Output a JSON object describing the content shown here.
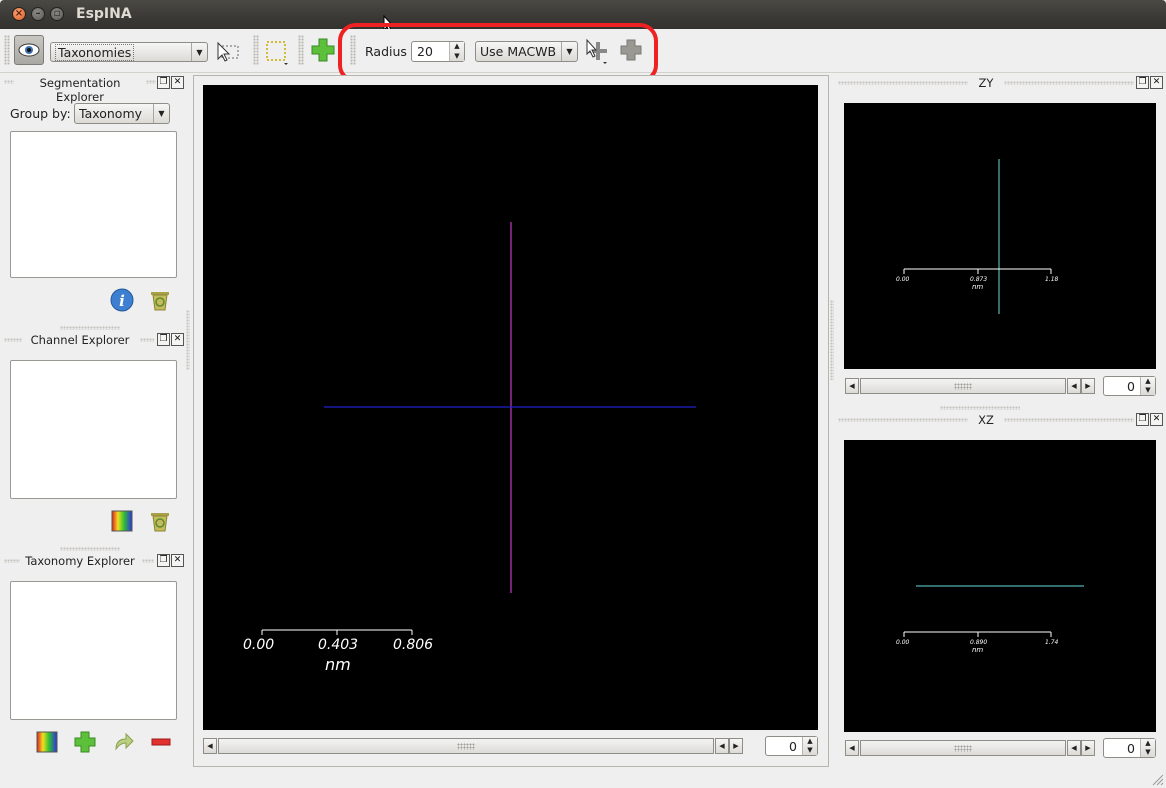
{
  "window": {
    "title": "EspINA"
  },
  "toolbar": {
    "taxonomy_combo": "Taxonomies",
    "radius_label": "Radius",
    "radius_value": "20",
    "method_combo": "Use MACWB"
  },
  "segmentation_explorer": {
    "title": "Segmentation Explorer",
    "group_by_label": "Group by:",
    "group_by_value": "Taxonomy"
  },
  "channel_explorer": {
    "title": "Channel Explorer"
  },
  "taxonomy_explorer": {
    "title": "Taxonomy Explorer"
  },
  "main_view": {
    "scale_ticks": [
      "0.00",
      "0.403",
      "0.806"
    ],
    "scale_unit": "nm",
    "slice_value": "0"
  },
  "zy_view": {
    "title": "ZY",
    "scale_ticks": [
      "0.00",
      "0.873",
      "1.18"
    ],
    "scale_unit": "nm",
    "slice_value": "0"
  },
  "xz_view": {
    "title": "XZ",
    "scale_ticks": [
      "0.00",
      "0.890",
      "1.74"
    ],
    "scale_unit": "nm",
    "slice_value": "0"
  },
  "colors": {
    "crosshair_vertical": "#c03cc0",
    "crosshair_horizontal": "#2222cc",
    "crosshair_side": "#66dddd",
    "highlight": "#ee2222"
  },
  "icons": [
    "eye-icon",
    "pointer-select-icon",
    "selection-box-icon",
    "add-icon",
    "info-icon",
    "recycle-bin-icon",
    "color-gradient-icon",
    "redo-arrow-icon",
    "remove-icon"
  ]
}
